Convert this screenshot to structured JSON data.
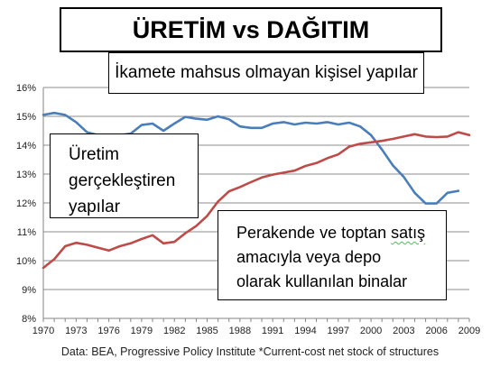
{
  "title": "ÜRETİM vs DAĞITIM",
  "subtitle": "İkamete mahsus olmayan kişisel yapılar",
  "annotations": {
    "production_lines": [
      "Üretim",
      "gerçekleştiren",
      "yapılar"
    ],
    "retail_line1": "Perakende ve toptan ",
    "retail_line1_marked": "satış",
    "retail_line2": "amacıyla veya depo",
    "retail_line3": "olarak kullanılan binalar"
  },
  "source": "Data: BEA, Progressive Policy Institute *Current-cost net stock of structures",
  "chart_data": {
    "type": "line",
    "x": [
      1970,
      1971,
      1972,
      1973,
      1974,
      1975,
      1976,
      1977,
      1978,
      1979,
      1980,
      1981,
      1982,
      1983,
      1984,
      1985,
      1986,
      1987,
      1988,
      1989,
      1990,
      1991,
      1992,
      1993,
      1994,
      1995,
      1996,
      1997,
      1998,
      1999,
      2000,
      2001,
      2002,
      2003,
      2004,
      2005,
      2006,
      2007,
      2008,
      2009
    ],
    "series": [
      {
        "color": "#4a7ebb",
        "values": [
          15.05,
          15.12,
          15.05,
          14.8,
          14.45,
          14.35,
          14.3,
          14.35,
          14.4,
          14.7,
          14.75,
          14.5,
          14.75,
          14.98,
          14.92,
          14.88,
          15.0,
          14.9,
          14.65,
          14.6,
          14.6,
          14.75,
          14.8,
          14.72,
          14.78,
          14.75,
          14.8,
          14.72,
          14.78,
          14.65,
          14.35,
          13.85,
          13.3,
          12.9,
          12.35,
          11.98,
          11.98,
          12.35,
          12.42,
          null
        ]
      },
      {
        "color": "#be4b48",
        "values": [
          9.75,
          10.05,
          10.5,
          10.62,
          10.55,
          10.45,
          10.35,
          10.5,
          10.6,
          10.75,
          10.88,
          10.6,
          10.65,
          10.95,
          11.2,
          11.55,
          12.05,
          12.4,
          12.55,
          12.72,
          12.88,
          12.98,
          13.05,
          13.12,
          13.28,
          13.38,
          13.55,
          13.68,
          13.95,
          14.05,
          14.1,
          14.15,
          14.22,
          14.3,
          14.38,
          14.3,
          14.28,
          14.3,
          14.45,
          14.35
        ]
      }
    ],
    "y_ticks": [
      "8%",
      "9%",
      "10%",
      "11%",
      "12%",
      "13%",
      "14%",
      "15%",
      "16%"
    ],
    "x_ticks": [
      "1970",
      "1973",
      "1976",
      "1979",
      "1982",
      "1985",
      "1988",
      "1991",
      "1994",
      "1997",
      "2000",
      "2003",
      "2006",
      "2009"
    ],
    "ylim": [
      8,
      16
    ],
    "xlim": [
      1970,
      2009
    ],
    "grid": true,
    "legend": "none"
  }
}
